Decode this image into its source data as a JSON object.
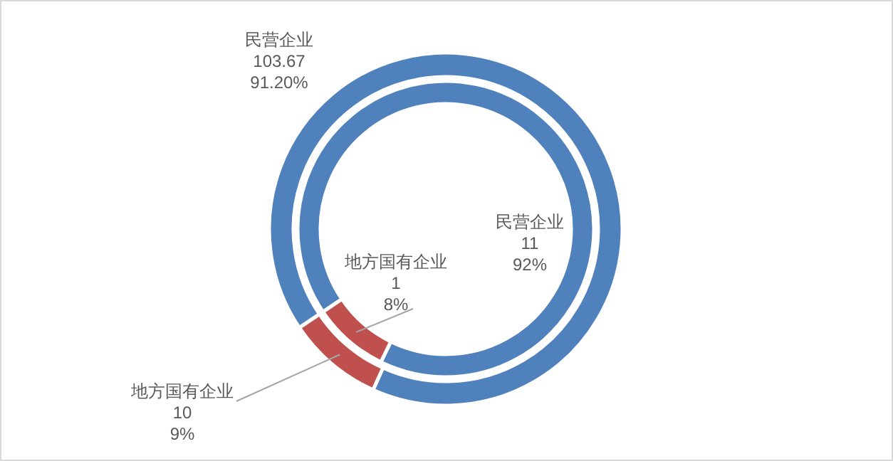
{
  "chart_data": [
    {
      "type": "donut",
      "categories": [
        "民营企业",
        "地方国有企业"
      ],
      "values": [
        103.67,
        10
      ],
      "colors": [
        "#4f81bd",
        "#c0504d"
      ],
      "value_labels": [
        "103.67\n91.20%",
        "10\n9%"
      ]
    },
    {
      "type": "donut",
      "categories": [
        "民营企业",
        "地方国有企业"
      ],
      "values": [
        11,
        1
      ],
      "colors": [
        "#4f81bd",
        "#c0504d"
      ],
      "value_labels": [
        "11\n92%",
        "1\n8%"
      ]
    }
  ]
}
